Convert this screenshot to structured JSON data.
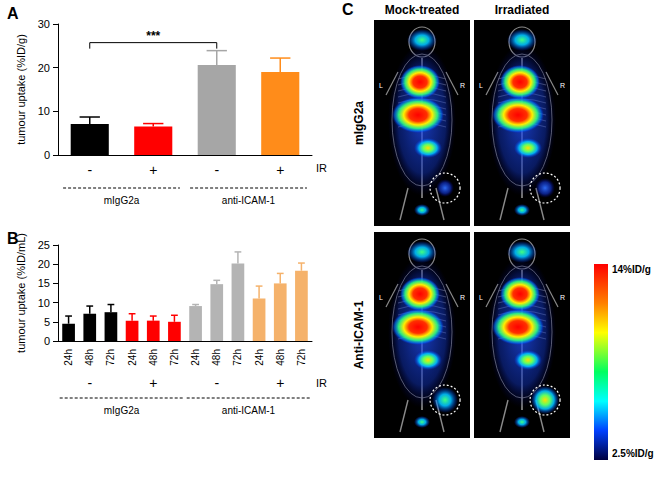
{
  "chart_data": [
    {
      "type": "bar",
      "title": "A",
      "y_label": "tumour uptake (%ID/g)",
      "x_label": "IR",
      "categories": [
        "-",
        "+",
        "-",
        "+"
      ],
      "groups": [
        "mIgG2a",
        "mIgG2a",
        "anti-ICAM-1",
        "anti-ICAM-1"
      ],
      "values": [
        7.1,
        6.5,
        20.6,
        19.0
      ],
      "errors": [
        1.6,
        0.7,
        3.3,
        3.2
      ],
      "colors": [
        "#000000",
        "#ff0000",
        "#a6a6a6",
        "#ff8c1a"
      ],
      "ylim": [
        0,
        30
      ],
      "yticks": [
        0,
        10,
        20,
        30
      ],
      "grid": false,
      "annotations": [
        {
          "text": "***",
          "between": [
            0,
            2
          ]
        }
      ]
    },
    {
      "type": "bar",
      "title": "B",
      "y_label": "tumour uptake (%ID/mL)",
      "x_label": "IR",
      "categories": [
        "24h",
        "48h",
        "72h",
        "24h",
        "48h",
        "72h",
        "24h",
        "48h",
        "72h",
        "24h",
        "48h",
        "72h"
      ],
      "subgroups": [
        "-",
        "-",
        "-",
        "+",
        "+",
        "+",
        "-",
        "-",
        "-",
        "+",
        "+",
        "+"
      ],
      "groups": [
        "mIgG2a",
        "mIgG2a",
        "mIgG2a",
        "mIgG2a",
        "mIgG2a",
        "mIgG2a",
        "anti-ICAM-1",
        "anti-ICAM-1",
        "anti-ICAM-1",
        "anti-ICAM-1",
        "anti-ICAM-1",
        "anti-ICAM-1"
      ],
      "values": [
        4.5,
        7.1,
        7.5,
        5.3,
        5.3,
        5.0,
        9.1,
        14.8,
        20.2,
        11.1,
        15.0,
        18.3
      ],
      "errors": [
        2.0,
        2.0,
        2.0,
        1.8,
        1.2,
        1.7,
        0.4,
        1.0,
        3.0,
        3.2,
        2.6,
        2.0
      ],
      "colors": [
        "#000000",
        "#000000",
        "#000000",
        "#ff0000",
        "#ff0000",
        "#ff0000",
        "#b4b4b4",
        "#b4b4b4",
        "#b4b4b4",
        "#f5b26b",
        "#f5b26b",
        "#f5b26b"
      ],
      "ylim": [
        0,
        25
      ],
      "yticks": [
        0,
        5,
        10,
        15,
        20,
        25
      ],
      "grid": false
    },
    {
      "type": "image_grid",
      "title": "C",
      "columns": [
        "Mock-treated",
        "Irradiated"
      ],
      "rows": [
        "mIgG2a",
        "Anti-ICAM-1"
      ],
      "side_labels": [
        "L",
        "R"
      ],
      "colorbar": {
        "range": [
          2.5,
          14
        ],
        "ticks": [
          {
            "value": 14,
            "label": "14%ID/g"
          },
          {
            "value": 2.5,
            "label": "2.5%ID/g"
          }
        ]
      }
    }
  ]
}
